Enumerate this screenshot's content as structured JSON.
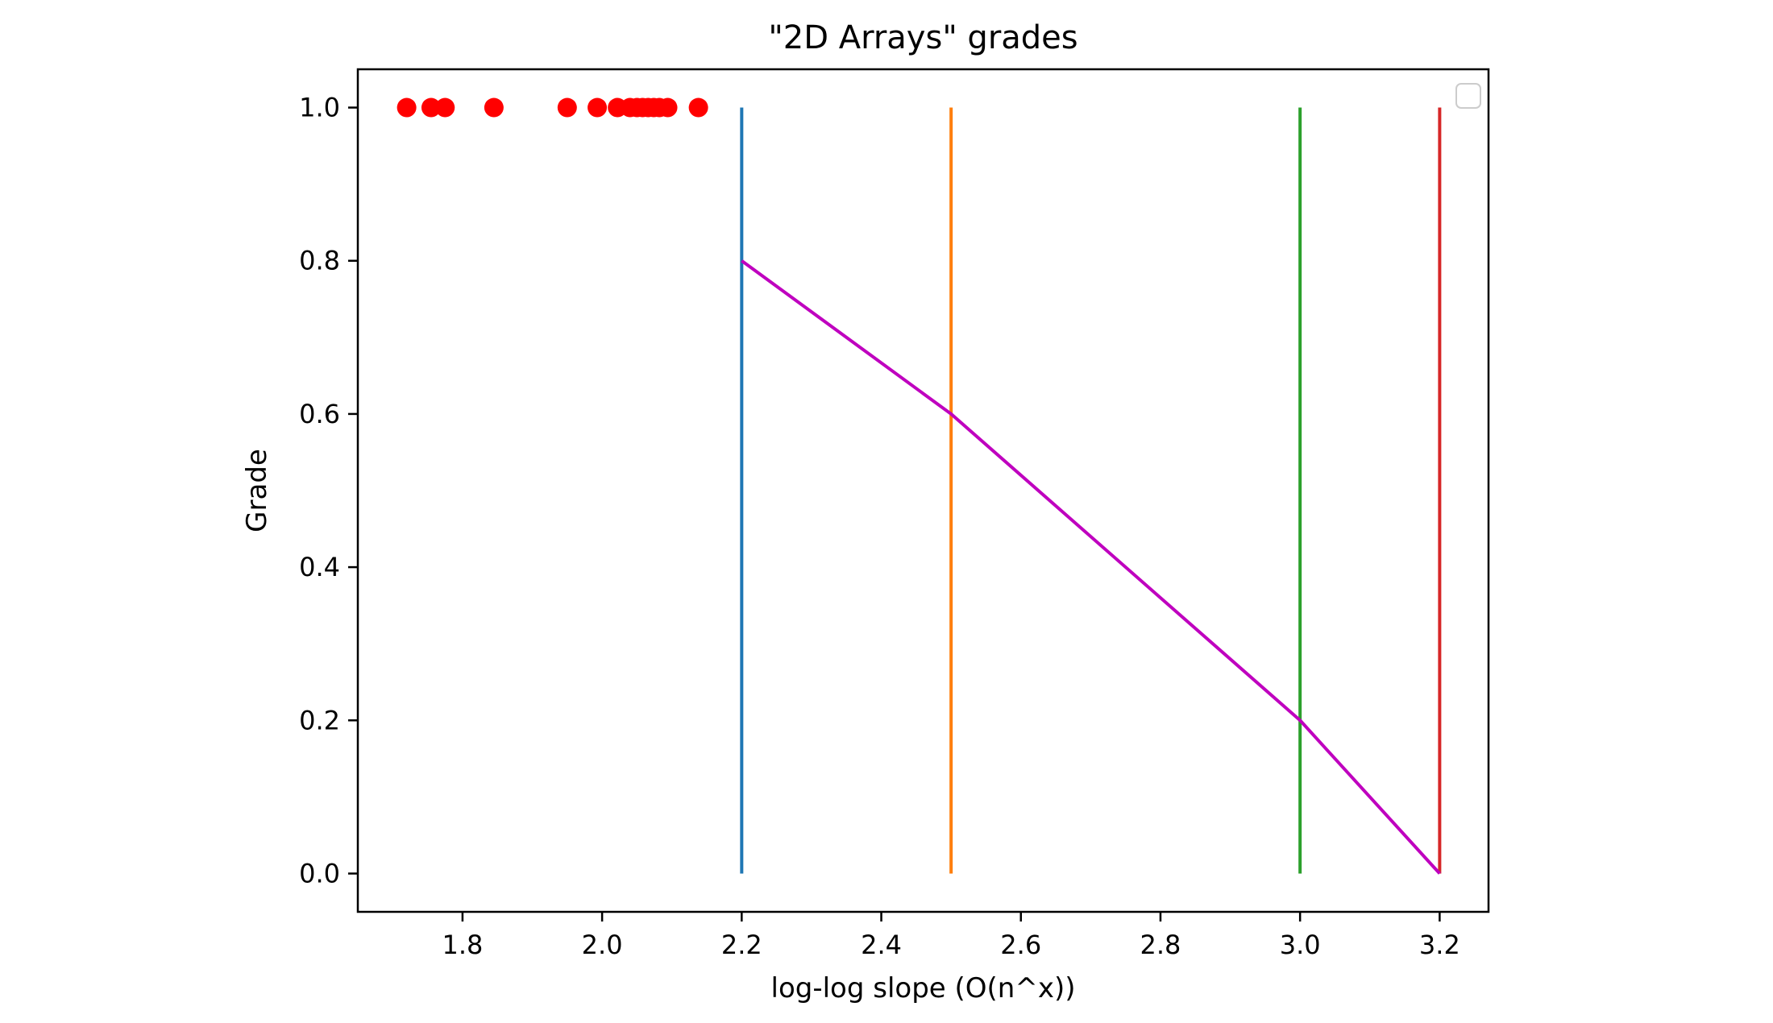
{
  "chart_data": {
    "type": "scatter",
    "title": "\"2D Arrays\" grades",
    "xlabel": "log-log slope (O(n^x))",
    "ylabel": "Grade",
    "xlim": [
      1.65,
      3.27
    ],
    "ylim": [
      -0.05,
      1.05
    ],
    "x_ticks": [
      "1.8",
      "2.0",
      "2.2",
      "2.4",
      "2.6",
      "2.8",
      "3.0",
      "3.2"
    ],
    "x_tick_values": [
      1.8,
      2.0,
      2.2,
      2.4,
      2.6,
      2.8,
      3.0,
      3.2
    ],
    "y_ticks": [
      "0.0",
      "0.2",
      "0.4",
      "0.6",
      "0.8",
      "1.0"
    ],
    "y_tick_values": [
      0.0,
      0.2,
      0.4,
      0.6,
      0.8,
      1.0
    ],
    "grid": false,
    "legend": "top-right (empty)",
    "scatter_points": {
      "color": "#ff0000",
      "x": [
        1.72,
        1.755,
        1.775,
        1.845,
        1.95,
        1.993,
        2.022,
        2.04,
        2.05,
        2.058,
        2.066,
        2.074,
        2.082,
        2.094,
        2.138
      ],
      "y": [
        1,
        1,
        1,
        1,
        1,
        1,
        1,
        1,
        1,
        1,
        1,
        1,
        1,
        1,
        1
      ]
    },
    "vertical_lines": [
      {
        "x": 2.2,
        "y_range": [
          0,
          1
        ],
        "color": "#1f77b4"
      },
      {
        "x": 2.5,
        "y_range": [
          0,
          1
        ],
        "color": "#ff7f0e"
      },
      {
        "x": 3.0,
        "y_range": [
          0,
          1
        ],
        "color": "#2ca02c"
      },
      {
        "x": 3.2,
        "y_range": [
          0,
          1
        ],
        "color": "#d62728"
      }
    ],
    "grade_curve": {
      "color": "#bf00bf",
      "x": [
        2.2,
        2.5,
        3.0,
        3.2
      ],
      "y": [
        0.8,
        0.6,
        0.2,
        0.0
      ]
    }
  }
}
